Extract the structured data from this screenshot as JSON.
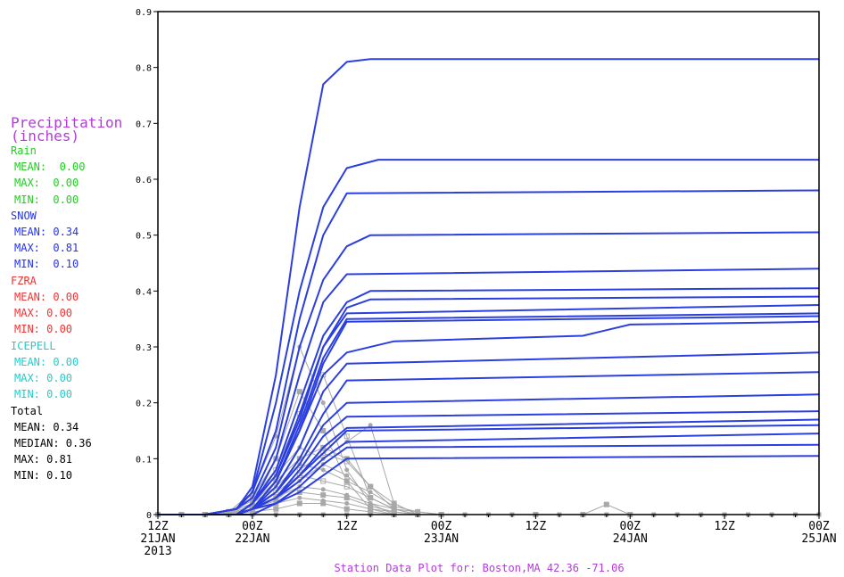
{
  "colors": {
    "rain": "#22cc22",
    "snow": "#2233ee",
    "fzra": "#ee3333",
    "icepell": "#22cccc",
    "total": "#000000",
    "title": "#b23cd8",
    "member_line": "#2b3fe0",
    "ensemble_points": "#a8a8a8"
  },
  "legend": {
    "title_line1": "Precipitation",
    "title_line2": "(inches)",
    "rain": {
      "label": "Rain",
      "mean": "MEAN:  0.00",
      "max": "MAX:  0.00",
      "min": "MIN:  0.00"
    },
    "snow": {
      "label": "SNOW",
      "mean": "MEAN: 0.34",
      "max": "MAX:  0.81",
      "min": "MIN:  0.10"
    },
    "fzra": {
      "label": "FZRA",
      "mean": "MEAN: 0.00",
      "max": "MAX: 0.00",
      "min": "MIN: 0.00"
    },
    "icepell": {
      "label": "ICEPELL",
      "mean": "MEAN: 0.00",
      "max": "MAX: 0.00",
      "min": "MIN: 0.00"
    },
    "total": {
      "label": "Total",
      "mean": "MEAN: 0.34",
      "median": "MEDIAN: 0.36",
      "max": "MAX: 0.81",
      "min": "MIN: 0.10"
    }
  },
  "chart_data": {
    "type": "line",
    "title": "Station Data Plot for: Boston,MA 42.36 -71.06",
    "x_unit": "hours from 12Z 21JAN 2013",
    "x_range": [
      0,
      84
    ],
    "ylim": [
      0,
      0.9
    ],
    "y_ticks": [
      "0",
      "0.1",
      "0.2",
      "0.3",
      "0.4",
      "0.5",
      "0.6",
      "0.7",
      "0.8",
      "0.9"
    ],
    "x_ticks": [
      {
        "x": 0,
        "line1": "12Z",
        "line2": "21JAN",
        "line3": "2013"
      },
      {
        "x": 12,
        "line1": "00Z",
        "line2": "22JAN",
        "line3": ""
      },
      {
        "x": 24,
        "line1": "12Z",
        "line2": "",
        "line3": ""
      },
      {
        "x": 36,
        "line1": "00Z",
        "line2": "23JAN",
        "line3": ""
      },
      {
        "x": 48,
        "line1": "12Z",
        "line2": "",
        "line3": ""
      },
      {
        "x": 60,
        "line1": "00Z",
        "line2": "24JAN",
        "line3": ""
      },
      {
        "x": 72,
        "line1": "12Z",
        "line2": "",
        "line3": ""
      },
      {
        "x": 84,
        "line1": "00Z",
        "line2": "25JAN",
        "line3": ""
      }
    ],
    "grid": false,
    "accumulation_series": [
      {
        "x": [
          0,
          6,
          10,
          12,
          15,
          18,
          21,
          24,
          27,
          84
        ],
        "y": [
          0,
          0,
          0.01,
          0.05,
          0.25,
          0.55,
          0.77,
          0.81,
          0.815,
          0.815
        ]
      },
      {
        "x": [
          0,
          6,
          10,
          12,
          15,
          18,
          21,
          24,
          28,
          84
        ],
        "y": [
          0,
          0,
          0.01,
          0.04,
          0.2,
          0.4,
          0.55,
          0.62,
          0.635,
          0.635
        ]
      },
      {
        "x": [
          0,
          6,
          10,
          12,
          15,
          18,
          21,
          24,
          84
        ],
        "y": [
          0,
          0,
          0.01,
          0.04,
          0.15,
          0.35,
          0.5,
          0.575,
          0.58
        ]
      },
      {
        "x": [
          0,
          6,
          10,
          12,
          15,
          18,
          21,
          24,
          27,
          84
        ],
        "y": [
          0,
          0,
          0.01,
          0.03,
          0.12,
          0.3,
          0.42,
          0.48,
          0.5,
          0.505
        ]
      },
      {
        "x": [
          0,
          6,
          10,
          12,
          15,
          18,
          21,
          24,
          84
        ],
        "y": [
          0,
          0,
          0,
          0.02,
          0.1,
          0.25,
          0.38,
          0.43,
          0.44
        ]
      },
      {
        "x": [
          0,
          6,
          10,
          12,
          15,
          18,
          21,
          24,
          27,
          84
        ],
        "y": [
          0,
          0,
          0,
          0.02,
          0.08,
          0.2,
          0.32,
          0.38,
          0.4,
          0.405
        ]
      },
      {
        "x": [
          0,
          6,
          10,
          12,
          15,
          18,
          21,
          24,
          27,
          84
        ],
        "y": [
          0,
          0,
          0,
          0.02,
          0.07,
          0.18,
          0.3,
          0.37,
          0.385,
          0.39
        ]
      },
      {
        "x": [
          0,
          6,
          10,
          12,
          15,
          18,
          21,
          24,
          84
        ],
        "y": [
          0,
          0,
          0,
          0.02,
          0.07,
          0.17,
          0.3,
          0.36,
          0.375
        ]
      },
      {
        "x": [
          0,
          6,
          10,
          12,
          15,
          18,
          21,
          24,
          84
        ],
        "y": [
          0,
          0,
          0,
          0.01,
          0.06,
          0.16,
          0.28,
          0.35,
          0.36
        ]
      },
      {
        "x": [
          0,
          6,
          10,
          12,
          15,
          18,
          21,
          24,
          84
        ],
        "y": [
          0,
          0,
          0,
          0.01,
          0.06,
          0.15,
          0.27,
          0.345,
          0.355
        ]
      },
      {
        "x": [
          0,
          6,
          10,
          12,
          15,
          18,
          21,
          24,
          30,
          54,
          57,
          60,
          84
        ],
        "y": [
          0,
          0,
          0,
          0.01,
          0.06,
          0.15,
          0.25,
          0.29,
          0.31,
          0.32,
          0.33,
          0.34,
          0.345
        ]
      },
      {
        "x": [
          0,
          6,
          10,
          12,
          15,
          18,
          21,
          24,
          84
        ],
        "y": [
          0,
          0,
          0,
          0.01,
          0.05,
          0.12,
          0.22,
          0.27,
          0.29
        ]
      },
      {
        "x": [
          0,
          6,
          10,
          12,
          15,
          18,
          21,
          24,
          84
        ],
        "y": [
          0,
          0,
          0,
          0.01,
          0.04,
          0.1,
          0.18,
          0.24,
          0.255
        ]
      },
      {
        "x": [
          0,
          6,
          10,
          12,
          15,
          18,
          21,
          24,
          84
        ],
        "y": [
          0,
          0,
          0,
          0.01,
          0.04,
          0.09,
          0.16,
          0.2,
          0.215
        ]
      },
      {
        "x": [
          0,
          6,
          10,
          12,
          15,
          18,
          21,
          24,
          84
        ],
        "y": [
          0,
          0,
          0,
          0.01,
          0.03,
          0.08,
          0.14,
          0.175,
          0.185
        ]
      },
      {
        "x": [
          0,
          6,
          10,
          12,
          15,
          18,
          21,
          24,
          84
        ],
        "y": [
          0,
          0,
          0,
          0.01,
          0.03,
          0.07,
          0.12,
          0.155,
          0.17
        ]
      },
      {
        "x": [
          0,
          6,
          10,
          12,
          15,
          18,
          21,
          24,
          84
        ],
        "y": [
          0,
          0,
          0,
          0.01,
          0.03,
          0.07,
          0.11,
          0.15,
          0.16
        ]
      },
      {
        "x": [
          0,
          6,
          10,
          12,
          15,
          18,
          21,
          24,
          84
        ],
        "y": [
          0,
          0,
          0,
          0.01,
          0.03,
          0.06,
          0.1,
          0.13,
          0.145
        ]
      },
      {
        "x": [
          0,
          6,
          10,
          12,
          15,
          18,
          21,
          24,
          84
        ],
        "y": [
          0,
          0,
          0,
          0.01,
          0.02,
          0.05,
          0.09,
          0.12,
          0.125
        ]
      },
      {
        "x": [
          0,
          6,
          10,
          12,
          15,
          18,
          21,
          24,
          84
        ],
        "y": [
          0,
          0,
          0,
          0,
          0.02,
          0.04,
          0.07,
          0.1,
          0.105
        ]
      }
    ],
    "rate_series": [
      {
        "x": [
          0,
          3,
          6,
          9,
          12,
          15,
          18,
          21,
          24,
          27,
          30,
          33,
          36,
          84
        ],
        "y": [
          0,
          0,
          0,
          0.005,
          0.03,
          0.1,
          0.22,
          0.15,
          0.06,
          0.01,
          0,
          0,
          0,
          0
        ]
      },
      {
        "x": [
          0,
          3,
          6,
          9,
          12,
          15,
          18,
          21,
          24,
          27,
          30,
          33,
          36,
          84
        ],
        "y": [
          0,
          0,
          0,
          0.005,
          0.04,
          0.14,
          0.3,
          0.2,
          0.08,
          0.02,
          0,
          0,
          0,
          0
        ]
      },
      {
        "x": [
          0,
          3,
          6,
          9,
          12,
          15,
          18,
          21,
          24,
          27,
          30,
          33,
          36,
          84
        ],
        "y": [
          0,
          0,
          0,
          0.005,
          0.03,
          0.08,
          0.18,
          0.25,
          0.14,
          0.03,
          0.01,
          0,
          0,
          0
        ]
      },
      {
        "x": [
          0,
          3,
          6,
          9,
          12,
          15,
          18,
          21,
          24,
          27,
          30,
          33,
          36,
          84
        ],
        "y": [
          0,
          0,
          0,
          0.004,
          0.025,
          0.07,
          0.12,
          0.1,
          0.13,
          0.16,
          0.02,
          0,
          0,
          0
        ]
      },
      {
        "x": [
          0,
          3,
          6,
          9,
          12,
          15,
          18,
          21,
          24,
          27,
          30,
          33,
          36,
          84
        ],
        "y": [
          0,
          0,
          0,
          0.003,
          0.02,
          0.06,
          0.1,
          0.12,
          0.1,
          0.05,
          0.01,
          0,
          0,
          0
        ]
      },
      {
        "x": [
          0,
          3,
          6,
          9,
          12,
          15,
          18,
          21,
          24,
          27,
          30,
          33,
          36,
          84
        ],
        "y": [
          0,
          0,
          0,
          0.003,
          0.02,
          0.05,
          0.09,
          0.08,
          0.06,
          0.04,
          0.015,
          0.005,
          0,
          0
        ]
      },
      {
        "x": [
          0,
          3,
          6,
          9,
          12,
          15,
          18,
          21,
          24,
          27,
          30,
          33,
          36,
          84
        ],
        "y": [
          0,
          0,
          0,
          0.002,
          0.015,
          0.04,
          0.07,
          0.06,
          0.05,
          0.03,
          0.01,
          0.005,
          0,
          0
        ]
      },
      {
        "x": [
          0,
          3,
          6,
          9,
          12,
          15,
          18,
          21,
          24,
          27,
          30,
          33,
          36,
          84
        ],
        "y": [
          0,
          0,
          0,
          0.002,
          0.01,
          0.03,
          0.05,
          0.045,
          0.035,
          0.02,
          0.01,
          0,
          0,
          0
        ]
      },
      {
        "x": [
          0,
          3,
          6,
          9,
          12,
          15,
          18,
          21,
          24,
          27,
          30,
          33,
          36,
          84
        ],
        "y": [
          0,
          0,
          0,
          0.001,
          0.01,
          0.02,
          0.04,
          0.035,
          0.03,
          0.015,
          0.005,
          0,
          0,
          0
        ]
      },
      {
        "x": [
          0,
          3,
          6,
          9,
          12,
          15,
          18,
          21,
          24,
          27,
          30,
          33,
          36,
          84
        ],
        "y": [
          0,
          0,
          0,
          0.001,
          0.01,
          0.025,
          0.06,
          0.09,
          0.07,
          0.03,
          0.01,
          0,
          0,
          0
        ]
      },
      {
        "x": [
          0,
          3,
          6,
          9,
          12,
          15,
          18,
          21,
          24,
          27,
          30,
          33,
          36,
          84
        ],
        "y": [
          0,
          0,
          0,
          0.002,
          0.015,
          0.03,
          0.08,
          0.11,
          0.095,
          0.05,
          0.02,
          0,
          0,
          0
        ]
      },
      {
        "x": [
          0,
          3,
          6,
          9,
          12,
          15,
          18,
          21,
          24,
          27,
          30,
          33,
          36,
          84
        ],
        "y": [
          0,
          0,
          0,
          0.001,
          0.008,
          0.02,
          0.03,
          0.025,
          0.02,
          0.01,
          0.005,
          0,
          0,
          0
        ]
      },
      {
        "x": [
          0,
          3,
          6,
          9,
          12,
          15,
          18,
          21,
          24,
          27,
          30,
          33,
          36,
          48,
          54,
          57,
          60,
          84
        ],
        "y": [
          0,
          0,
          0,
          0,
          0.005,
          0.01,
          0.02,
          0.02,
          0.01,
          0.005,
          0,
          0,
          0,
          0,
          0,
          0.018,
          0,
          0
        ]
      }
    ]
  }
}
